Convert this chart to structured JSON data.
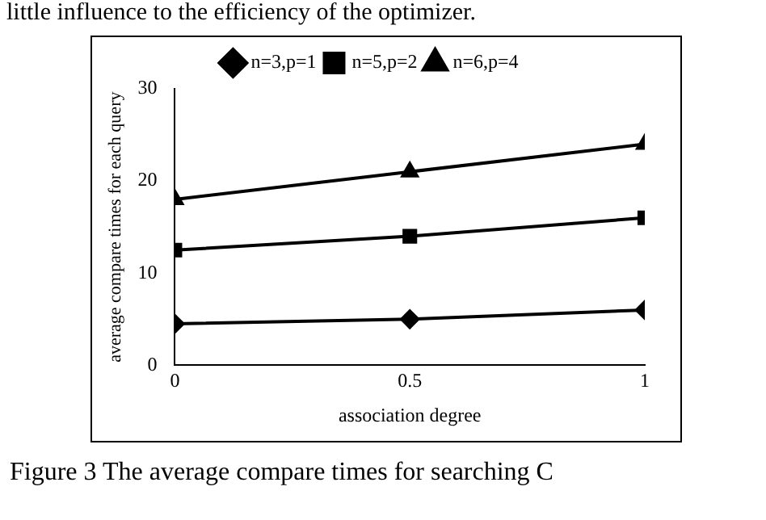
{
  "chart_data": {
    "type": "line",
    "xlabel": "association degree",
    "ylabel": "average compare times for each query",
    "x": [
      0,
      0.5,
      1
    ],
    "xlim": [
      0,
      1
    ],
    "xticks": [
      0,
      0.5,
      1
    ],
    "ylim": [
      0,
      30
    ],
    "yticks": [
      0,
      10,
      20,
      30
    ],
    "series": [
      {
        "name": "n=3,p=1",
        "color": "#000000",
        "marker": "diamond",
        "values": [
          4.5,
          5,
          6
        ]
      },
      {
        "name": "n=5,p=2",
        "color": "#000000",
        "marker": "square",
        "values": [
          12.5,
          14,
          16
        ]
      },
      {
        "name": "n=6,p=4",
        "color": "#000000",
        "marker": "triangle",
        "values": [
          18,
          21,
          24
        ]
      }
    ],
    "grid": false,
    "legend": "top",
    "line_style": "solid",
    "annotations": [
      "little influence to the efficiency of the optimizer.",
      "Figure 3 The average compare times for searching C"
    ]
  }
}
